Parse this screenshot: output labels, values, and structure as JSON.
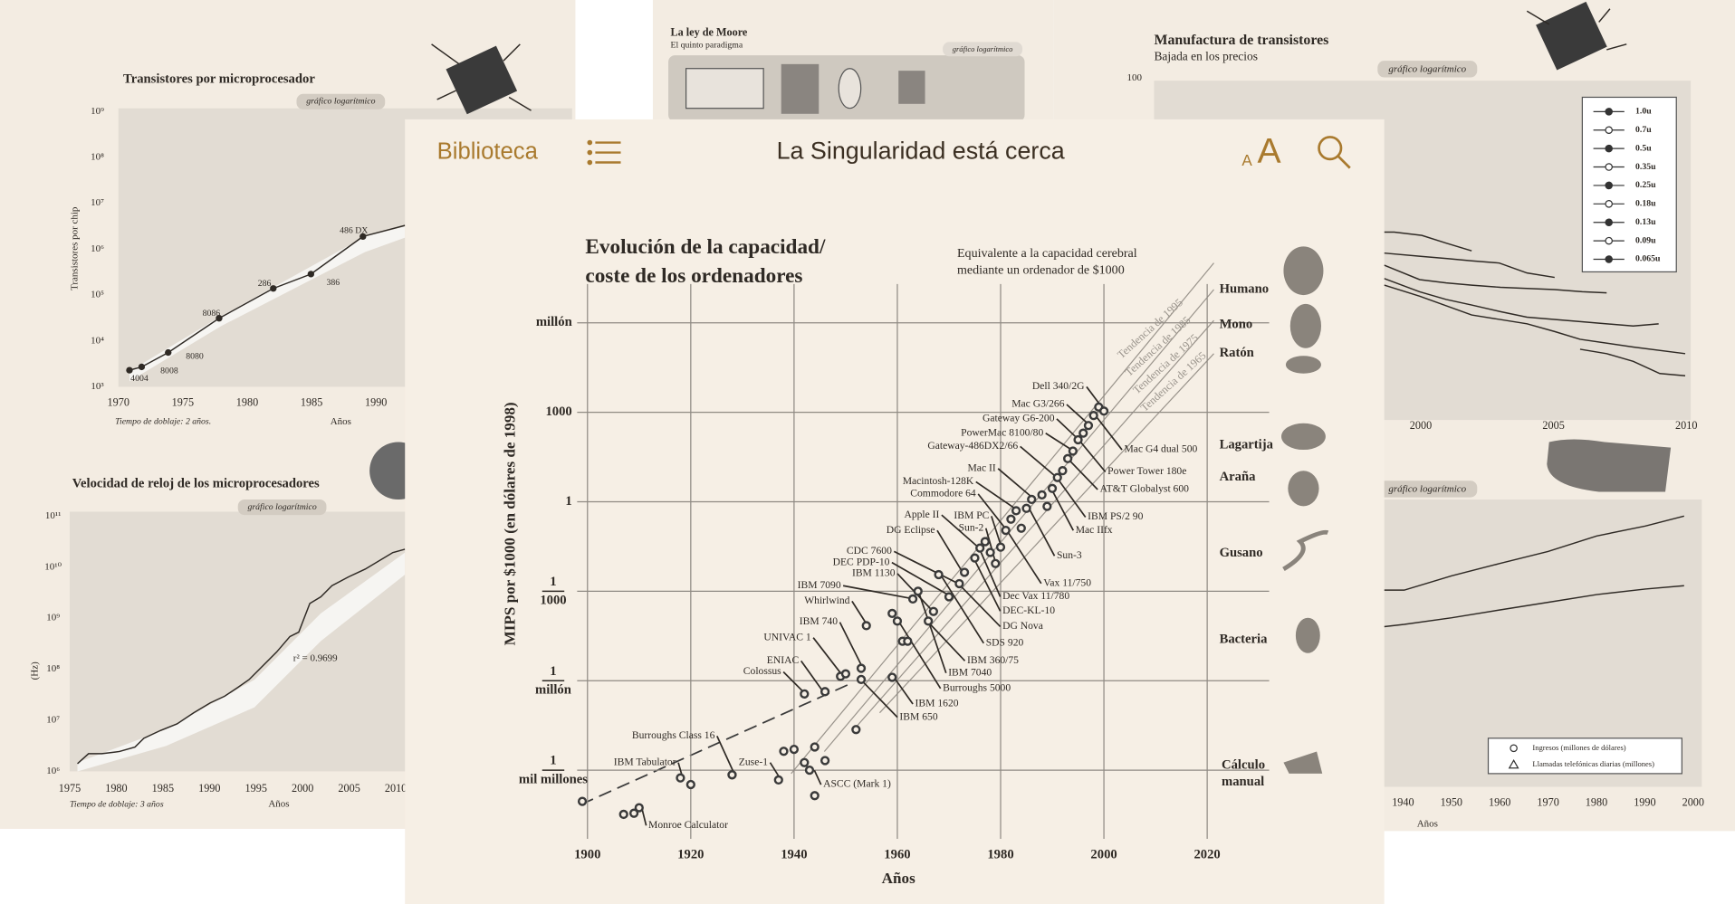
{
  "toolbar": {
    "library": "Biblioteca",
    "title": "La Singularidad está cerca",
    "font_small": "A",
    "font_large": "A"
  },
  "main_chart": {
    "type": "scatter",
    "title": [
      "Evolución de la capacidad/",
      "coste de los ordenadores"
    ],
    "annotation": [
      "Equivalente a la capacidad cerebral",
      "mediante un ordenador de $1000"
    ],
    "x_label": "Años",
    "y_label": "MIPS por $1000 (en dólares de 1998)",
    "log_y": true,
    "grid": true,
    "color": "#3a3a3a",
    "xlim": [
      1898,
      2032
    ],
    "ylim": [
      5e-12,
      20000000
    ],
    "xticks": [
      1900,
      1920,
      1940,
      1960,
      1980,
      2000,
      2020
    ],
    "yticks": [
      {
        "value": 1e-09,
        "label": [
          "1",
          "mil millones"
        ]
      },
      {
        "value": 1e-06,
        "label": [
          "1",
          "millón"
        ]
      },
      {
        "value": 0.001,
        "label": [
          "1",
          "1000"
        ]
      },
      1,
      1000,
      {
        "value": 1000000,
        "label": "millón"
      }
    ],
    "x": [
      1899,
      1907,
      1909,
      1910,
      1918,
      1920,
      1928,
      1928,
      1937,
      1938,
      1940,
      1942,
      1943,
      1944,
      1946,
      1944,
      1952,
      1942,
      1946,
      1949,
      1950,
      1953,
      1953,
      1959,
      1954,
      1959,
      1960,
      1961,
      1962,
      1963,
      1964,
      1966,
      1967,
      1968,
      1970,
      1972,
      1973,
      1975,
      1976,
      1977,
      1978,
      1979,
      1980,
      1981,
      1982,
      1983,
      1984,
      1985,
      1986,
      1988,
      1989,
      1990,
      1991,
      1992,
      1993,
      1994,
      1995,
      1996,
      1997,
      1998,
      1999,
      2000
    ],
    "values": [
      9e-11,
      3.3e-11,
      3.6e-11,
      5.5e-11,
      5.5e-10,
      3.3e-10,
      7e-10,
      7e-10,
      4.7e-10,
      4.3e-09,
      5e-09,
      1.8e-09,
      1e-09,
      6e-09,
      2.1e-09,
      1.4e-10,
      2.3e-08,
      3.6e-07,
      4.3e-07,
      1.4e-06,
      1.7e-06,
      1.1e-06,
      2.6e-06,
      1.3e-06,
      7e-05,
      0.00018,
      0.0001,
      2.1e-05,
      2.1e-05,
      0.00055,
      0.001,
      0.0001,
      0.00021,
      0.0036,
      0.00065,
      0.0018,
      0.0043,
      0.013,
      0.028,
      0.046,
      0.02,
      0.0085,
      0.03,
      0.11,
      0.26,
      0.5,
      0.13,
      0.6,
      1.2,
      1.7,
      0.7,
      2.8,
      6.5,
      11,
      28,
      50,
      120,
      200,
      360,
      780,
      1500,
      1100
    ],
    "machine_labels": [
      "Dell 340/2G",
      "Mac G3/266",
      "Gateway G6-200",
      "PowerMac 8100/80",
      "Gateway-486DX2/66",
      "Mac II",
      "Macintosh-128K",
      "Commodore 64",
      "Apple II",
      "IBM PC",
      "Sun-2",
      "DG Eclipse",
      "CDC 7600",
      "DEC PDP-10",
      "IBM 1130",
      "IBM 7090",
      "Whirlwind",
      "IBM 740",
      "UNIVAC 1",
      "ENIAC",
      "Colossus",
      "Burroughs Class 16",
      "IBM Tabulator",
      "Zuse-1",
      "Mac G4 dual 500",
      "Power Tower 180e",
      "AT&T Globalyst 600",
      "IBM PS/2 90",
      "Mac IIfx",
      "Sun-3",
      "Vax 11/750",
      "Dec Vax 11/780",
      "DEC-KL-10",
      "DG Nova",
      "SDS 920",
      "IBM 360/75",
      "IBM 7040",
      "Burroughs 5000",
      "IBM 1620",
      "IBM 650",
      "ASCC (Mark 1)",
      "Monroe Calculator"
    ],
    "trend_labels": [
      "Tendencia de 1995",
      "Tendencia de 1985",
      "Tendencia de 1975",
      "Tendencia de 1965"
    ],
    "brain_levels": [
      "Humano",
      "Mono",
      "Ratón",
      "Lagartija",
      "Araña",
      "Gusano",
      "Bacteria"
    ],
    "manual": [
      "Cálculo",
      "manual"
    ]
  },
  "left_top": {
    "title": "Transistores por microprocesador",
    "tag": "gráfico logarítmico",
    "y_label": "Transistores por chip",
    "yticks": [
      "10⁹",
      "10⁸",
      "10⁷",
      "10⁶",
      "10⁵",
      "10⁴",
      "10³"
    ],
    "xticks": [
      1970,
      1975,
      1980,
      1985,
      1990
    ],
    "point_labels": [
      "4004",
      "8008",
      "8080",
      "8086",
      "286",
      "386",
      "486 DX"
    ],
    "note": "Tiempo de doblaje: 2 años.",
    "x_label": "Años"
  },
  "left_bottom": {
    "title": "Velocidad de reloj de los microprocesadores",
    "tag": "gráfico logarítmico",
    "y_label": "(Hz)",
    "yticks": [
      "10¹¹",
      "10¹⁰",
      "10⁹",
      "10⁸",
      "10⁷",
      "10⁶"
    ],
    "xticks": [
      1975,
      1980,
      1985,
      1990,
      1995,
      2000,
      2005,
      2010
    ],
    "fit": "r² = 0.9699",
    "note": "Tiempo de doblaje: 3 años",
    "x_label": "Años"
  },
  "top_middle": {
    "title": "La ley de Moore",
    "subtitle": "El quinto paradigma",
    "tag": "gráfico logarítmico"
  },
  "right_top": {
    "title": "Manufactura de transistores",
    "subtitle": "Bajada en los precios",
    "ytick": 100,
    "tag": "gráfico logarítmico",
    "legend": [
      "1.0u",
      "0.7u",
      "0.5u",
      "0.35u",
      "0.25u",
      "0.18u",
      "0.13u",
      "0.09u",
      "0.065u"
    ],
    "xticks": [
      2000,
      2005,
      2010
    ]
  },
  "right_bottom": {
    "tag": "gráfico logarítmico",
    "legend": [
      "Ingresos (millones de dólares)",
      "Llamadas telefónicas diarias (millones)"
    ],
    "xticks": [
      1940,
      1950,
      1960,
      1970,
      1980,
      1990,
      2000
    ],
    "x_label": "Años"
  }
}
